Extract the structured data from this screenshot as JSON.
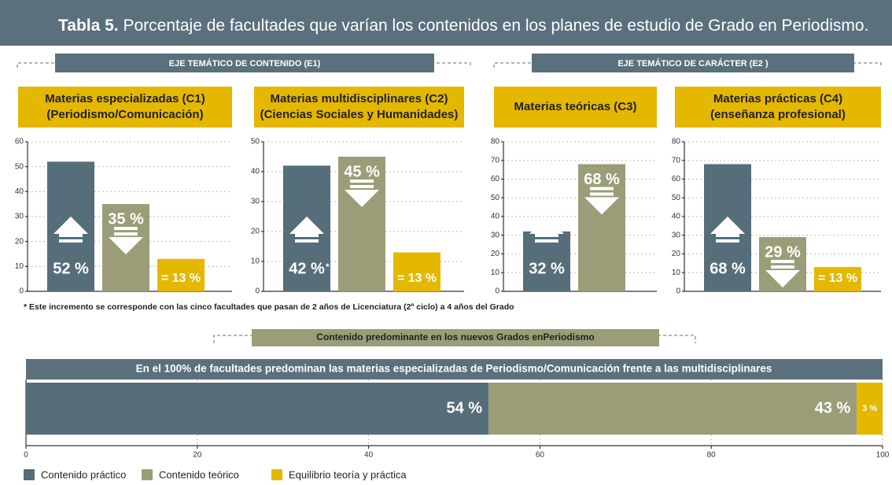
{
  "title_prefix": "Tabla 5.",
  "title": "Porcentaje de facultades que varían los contenidos en los planes de estudio de Grado en Periodismo.",
  "sections": [
    "EJE TEMÁTICO DE CONTENIDO (E1)",
    "EJE TEMÁTICO DE CARÁCTER (E2 )"
  ],
  "footnote": "* Este incremento se corresponde con las cinco facultades que pasan de 2 años de Licenciatura (2º ciclo) a 4 años del Grado",
  "chart_data": [
    {
      "type": "bar",
      "title": [
        "Materias especializadas  (C1)",
        "(Periodismo/Comunicación)"
      ],
      "values": [
        52,
        35,
        13
      ],
      "value_labels": [
        "52 %",
        "35 %",
        "= 13 %"
      ],
      "colors": [
        "#566d7a",
        "#9a9d78",
        "#e4b700"
      ],
      "ylim": [
        0,
        60
      ],
      "yticks": [
        0,
        10,
        20,
        30,
        40,
        50,
        60
      ],
      "grid": true
    },
    {
      "type": "bar",
      "title": [
        "Materias multidisciplinares (C2)",
        "(Ciencias Sociales y Humanidades)"
      ],
      "values": [
        42,
        45,
        13
      ],
      "value_labels": [
        "42 %",
        "45 %",
        "= 13 %"
      ],
      "note_marker": "*",
      "colors": [
        "#566d7a",
        "#9a9d78",
        "#e4b700"
      ],
      "ylim": [
        0,
        50
      ],
      "yticks": [
        0,
        10,
        20,
        30,
        40,
        50
      ],
      "grid": true
    },
    {
      "type": "bar",
      "title": [
        "Materias teóricas  (C3)"
      ],
      "values": [
        32,
        68
      ],
      "value_labels": [
        "32 %",
        "68 %"
      ],
      "colors": [
        "#566d7a",
        "#9a9d78"
      ],
      "ylim": [
        0,
        80
      ],
      "yticks": [
        0,
        10,
        20,
        30,
        40,
        50,
        60,
        70,
        80
      ],
      "grid": true
    },
    {
      "type": "bar",
      "title": [
        "Materias prácticas (C4)",
        "(enseñanza profesional)"
      ],
      "values": [
        68,
        29,
        13
      ],
      "value_labels": [
        "68 %",
        "29 %",
        "= 13 %"
      ],
      "colors": [
        "#566d7a",
        "#9a9d78",
        "#e4b700"
      ],
      "ylim": [
        0,
        80
      ],
      "yticks": [
        0,
        10,
        20,
        30,
        40,
        50,
        60,
        70,
        80
      ],
      "grid": true
    },
    {
      "type": "stacked_hbar",
      "title": "Contenido predominante en los nuevos Grados enPeriodismo",
      "subtitle": "En el 100% de facultades predominan las materias especializadas de Periodismo/Comunicación frente a las multidisciplinares",
      "series": [
        {
          "name": "Contenido práctico",
          "color": "#566d7a",
          "values": [
            54
          ],
          "value_labels": [
            "54 %"
          ]
        },
        {
          "name": "Contenido teórico",
          "color": "#9a9d78",
          "values": [
            43
          ],
          "value_labels": [
            "43 %"
          ]
        },
        {
          "name": "Equilibrio teoría y práctica",
          "color": "#e4b700",
          "values": [
            3
          ],
          "value_labels": [
            "3 %"
          ]
        }
      ],
      "xlim": [
        0,
        100
      ],
      "xticks": [
        0,
        20,
        40,
        60,
        80,
        100
      ],
      "grid": true,
      "legend": "bottom"
    }
  ]
}
